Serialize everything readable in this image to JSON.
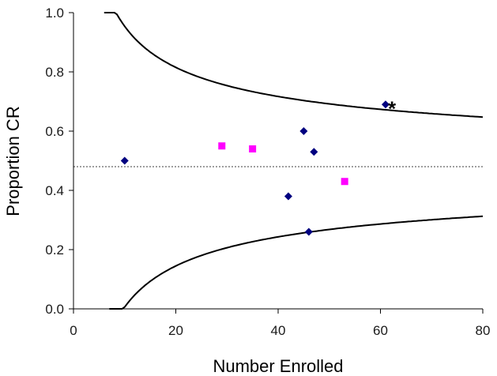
{
  "chart_data": {
    "type": "scatter",
    "title": "",
    "xlabel": "Number Enrolled",
    "ylabel": "Proportion CR",
    "xlim": [
      0,
      80
    ],
    "ylim": [
      0,
      1.0
    ],
    "x_ticks": [
      0,
      20,
      40,
      60,
      80
    ],
    "y_ticks": [
      0.0,
      0.2,
      0.4,
      0.6,
      0.8,
      1.0
    ],
    "x_tick_labels": [
      "0",
      "20",
      "40",
      "60",
      "80"
    ],
    "y_tick_labels": [
      "0.0",
      "0.2",
      "0.4",
      "0.6",
      "0.8",
      "1.0"
    ],
    "grid": false,
    "legend": "none",
    "series": [
      {
        "marker": "diamond",
        "color": "#000080",
        "points": [
          {
            "x": 10,
            "y": 0.5
          },
          {
            "x": 42,
            "y": 0.38
          },
          {
            "x": 45,
            "y": 0.6
          },
          {
            "x": 46,
            "y": 0.26
          },
          {
            "x": 47,
            "y": 0.53
          },
          {
            "x": 61,
            "y": 0.69
          }
        ]
      },
      {
        "marker": "square",
        "color": "#ff00ff",
        "points": [
          {
            "x": 29,
            "y": 0.55
          },
          {
            "x": 35,
            "y": 0.54
          },
          {
            "x": 53,
            "y": 0.43
          }
        ]
      }
    ],
    "reference_line": {
      "y": 0.48,
      "style": "dotted",
      "color": "#000000"
    },
    "control_limits": {
      "center": 0.48,
      "sigma_multiplier": 3,
      "x_start_upper": 6,
      "x_start_lower": 7,
      "x_end": 80,
      "color": "#000000"
    },
    "annotations": [
      {
        "text": "*",
        "x": 61,
        "y": 0.69
      }
    ]
  }
}
